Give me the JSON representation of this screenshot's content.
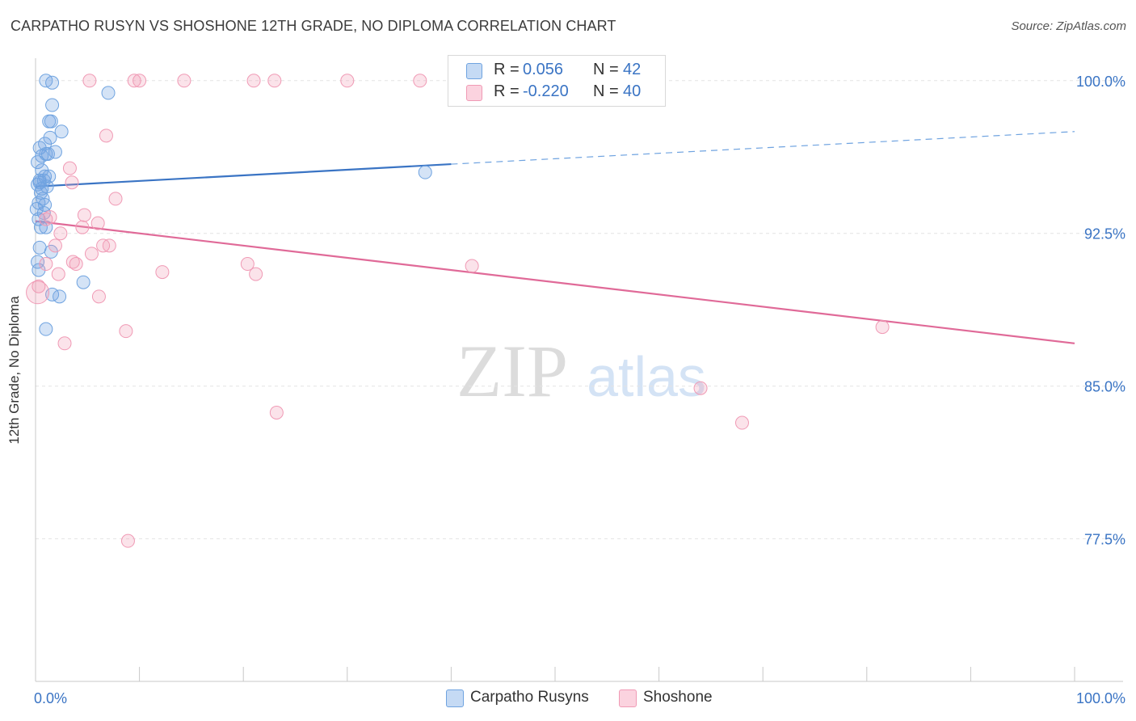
{
  "title": "CARPATHO RUSYN VS SHOSHONE 12TH GRADE, NO DIPLOMA CORRELATION CHART",
  "source": "Source: ZipAtlas.com",
  "watermark": {
    "zip": "ZIP",
    "atlas": "atlas"
  },
  "stats": [
    {
      "r_label": "R =",
      "r_value": "0.056",
      "n_label": "N =",
      "n_value": "42",
      "color": "#6fa3e0"
    },
    {
      "r_label": "R =",
      "r_value": "-0.220",
      "n_label": "N =",
      "n_value": "40",
      "color": "#f09ab5"
    }
  ],
  "chart_data": {
    "type": "scatter",
    "ylabel": "12th Grade, No Diploma",
    "xlim": [
      0,
      100
    ],
    "ylim": [
      70.5,
      101.5
    ],
    "x_tick_labels": [
      "0.0%",
      "100.0%"
    ],
    "y_ticks": [
      {
        "value": 100.0,
        "label": "100.0%"
      },
      {
        "value": 92.5,
        "label": "92.5%"
      },
      {
        "value": 85.0,
        "label": "85.0%"
      },
      {
        "value": 77.5,
        "label": "77.5%"
      }
    ],
    "grid": "horizontal dashed",
    "legend_position": "bottom-center",
    "series": [
      {
        "name": "Carpatho Rusyns",
        "color": "#6fa3e0",
        "points": [
          [
            1.0,
            100.0
          ],
          [
            1.6,
            99.9
          ],
          [
            7.0,
            99.4
          ],
          [
            1.6,
            98.8
          ],
          [
            1.3,
            98.0
          ],
          [
            1.5,
            98.0
          ],
          [
            2.5,
            97.5
          ],
          [
            1.4,
            97.2
          ],
          [
            0.9,
            96.9
          ],
          [
            0.4,
            96.7
          ],
          [
            1.9,
            96.5
          ],
          [
            1.0,
            96.4
          ],
          [
            0.6,
            96.3
          ],
          [
            0.2,
            96.0
          ],
          [
            0.6,
            95.6
          ],
          [
            0.9,
            95.3
          ],
          [
            1.3,
            95.3
          ],
          [
            0.4,
            95.1
          ],
          [
            0.8,
            95.1
          ],
          [
            0.2,
            94.9
          ],
          [
            1.1,
            94.8
          ],
          [
            0.5,
            94.5
          ],
          [
            0.7,
            94.2
          ],
          [
            0.3,
            94.0
          ],
          [
            0.9,
            93.9
          ],
          [
            0.1,
            93.7
          ],
          [
            0.5,
            92.8
          ],
          [
            1.0,
            92.8
          ],
          [
            0.4,
            91.8
          ],
          [
            1.5,
            91.6
          ],
          [
            0.2,
            91.1
          ],
          [
            0.3,
            90.7
          ],
          [
            4.6,
            90.1
          ],
          [
            1.6,
            89.5
          ],
          [
            2.3,
            89.4
          ],
          [
            1.0,
            87.8
          ],
          [
            37.5,
            95.5
          ],
          [
            0.8,
            93.5
          ],
          [
            0.4,
            95.0
          ],
          [
            1.2,
            96.4
          ],
          [
            0.6,
            94.7
          ],
          [
            0.3,
            93.2
          ]
        ],
        "trend": {
          "x": [
            0,
            40
          ],
          "y": [
            94.8,
            95.9
          ],
          "dash_x": [
            40,
            100
          ],
          "dash_y": [
            95.9,
            97.5
          ]
        }
      },
      {
        "name": "Shoshone",
        "color": "#f09ab5",
        "points": [
          [
            5.2,
            100.0
          ],
          [
            9.5,
            100.0
          ],
          [
            10.0,
            100.0
          ],
          [
            14.3,
            100.0
          ],
          [
            21.0,
            100.0
          ],
          [
            23.0,
            100.0
          ],
          [
            30.0,
            100.0
          ],
          [
            37.0,
            100.0
          ],
          [
            6.8,
            97.3
          ],
          [
            3.3,
            95.7
          ],
          [
            3.5,
            95.0
          ],
          [
            7.7,
            94.2
          ],
          [
            4.7,
            93.4
          ],
          [
            1.4,
            93.3
          ],
          [
            1.0,
            93.2
          ],
          [
            6.0,
            93.0
          ],
          [
            4.5,
            92.8
          ],
          [
            2.4,
            92.5
          ],
          [
            1.9,
            91.9
          ],
          [
            6.5,
            91.9
          ],
          [
            7.1,
            91.9
          ],
          [
            5.4,
            91.5
          ],
          [
            3.6,
            91.1
          ],
          [
            3.9,
            91.0
          ],
          [
            20.4,
            91.0
          ],
          [
            21.2,
            90.5
          ],
          [
            12.2,
            90.6
          ],
          [
            2.2,
            90.5
          ],
          [
            1.0,
            91.0
          ],
          [
            0.3,
            89.9
          ],
          [
            6.1,
            89.4
          ],
          [
            42.0,
            90.9
          ],
          [
            81.5,
            87.9
          ],
          [
            8.7,
            87.7
          ],
          [
            2.8,
            87.1
          ],
          [
            64.0,
            84.9
          ],
          [
            23.2,
            83.7
          ],
          [
            68.0,
            83.2
          ],
          [
            8.9,
            77.4
          ],
          [
            0.2,
            89.6
          ]
        ],
        "trend": {
          "x": [
            0,
            100
          ],
          "y": [
            93.1,
            87.1
          ]
        }
      }
    ]
  }
}
